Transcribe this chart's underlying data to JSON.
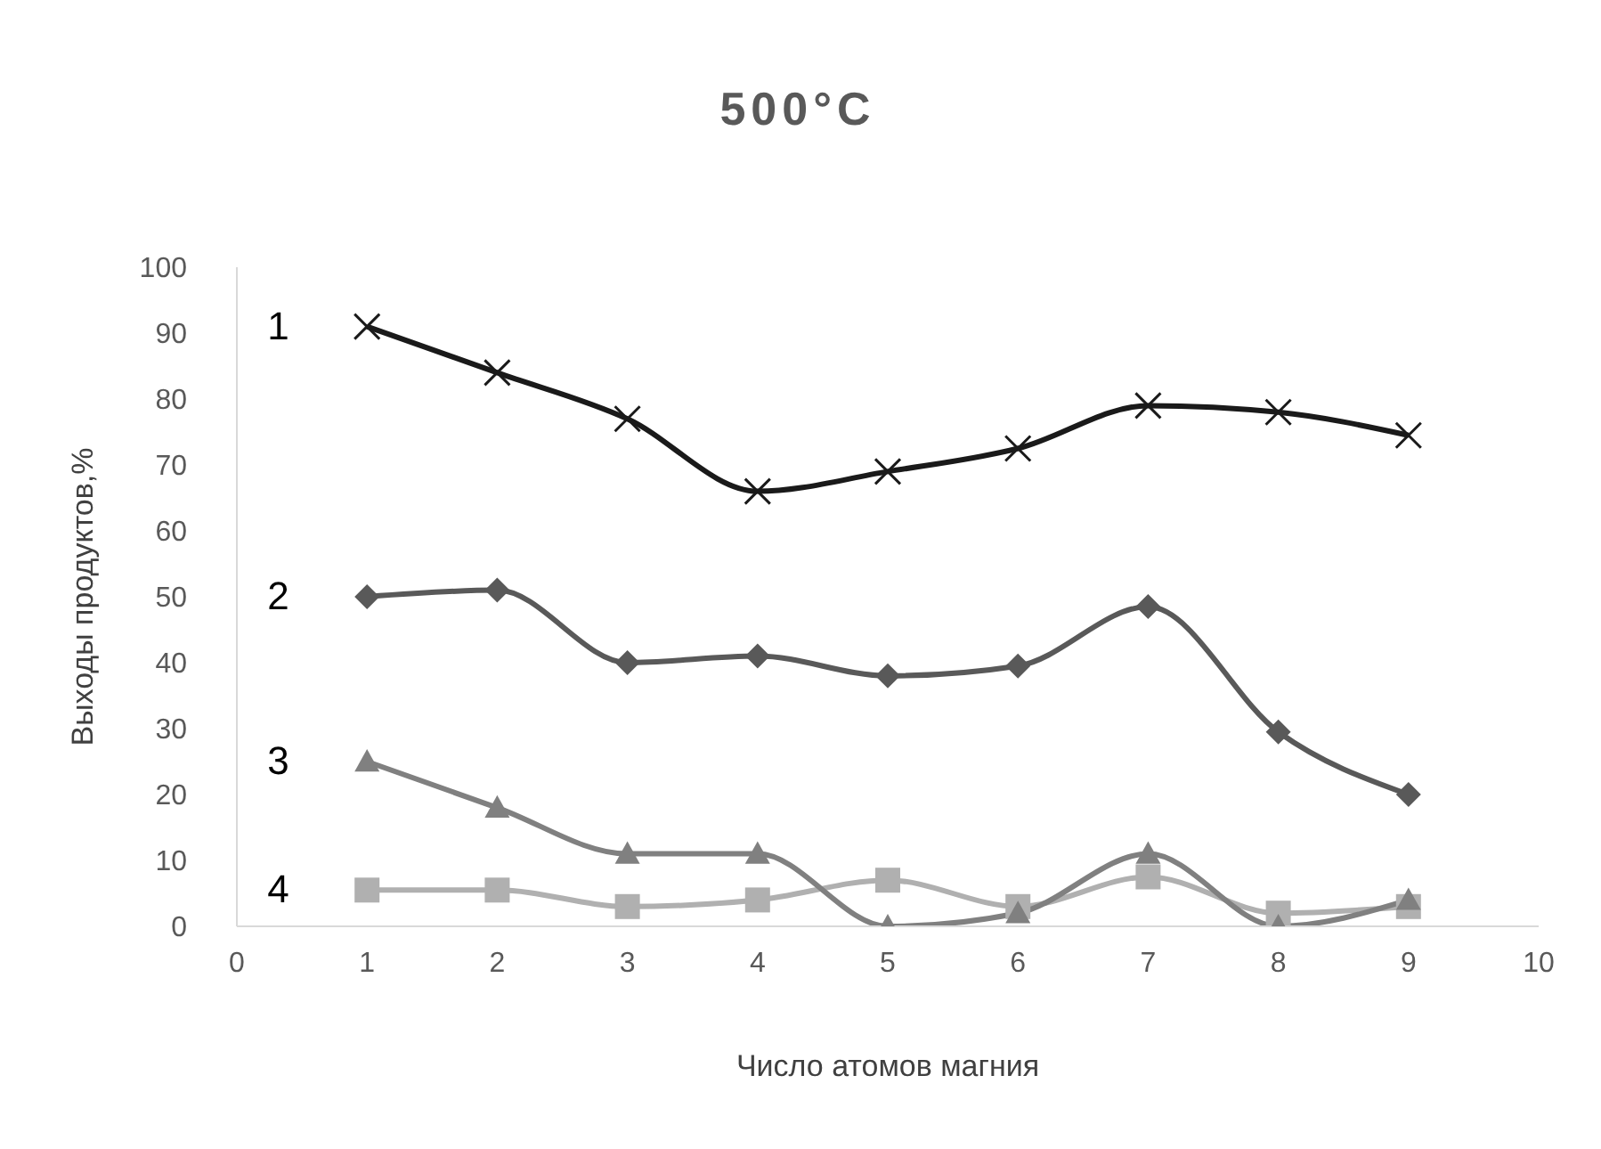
{
  "chart_data": {
    "type": "line",
    "title": "500°C",
    "xlabel": "Число атомов магния",
    "ylabel": "Выходы продуктов,%",
    "x": [
      1,
      2,
      3,
      4,
      5,
      6,
      7,
      8,
      9
    ],
    "xlim": [
      0,
      10
    ],
    "xticks": [
      0,
      1,
      2,
      3,
      4,
      5,
      6,
      7,
      8,
      9,
      10
    ],
    "ylim": [
      0,
      100
    ],
    "yticks": [
      0,
      10,
      20,
      30,
      40,
      50,
      60,
      70,
      80,
      90,
      100
    ],
    "grid": false,
    "legend": false,
    "line_style": "solid",
    "series": [
      {
        "name": "1",
        "color": "#1a1a1a",
        "marker": "cross",
        "values": [
          91,
          84,
          77,
          66,
          69,
          72.5,
          79,
          78,
          74.5
        ]
      },
      {
        "name": "2",
        "color": "#595959",
        "marker": "diamond",
        "values": [
          50,
          51,
          40,
          41,
          38,
          39.5,
          48.5,
          29.5,
          20
        ]
      },
      {
        "name": "3",
        "color": "#808080",
        "marker": "triangle",
        "values": [
          25,
          18,
          11,
          11,
          0,
          2,
          11,
          0,
          4
        ]
      },
      {
        "name": "4",
        "color": "#b0b0b0",
        "marker": "square",
        "values": [
          5.5,
          5.5,
          3,
          4,
          7,
          3,
          7.5,
          2,
          3
        ]
      }
    ]
  }
}
